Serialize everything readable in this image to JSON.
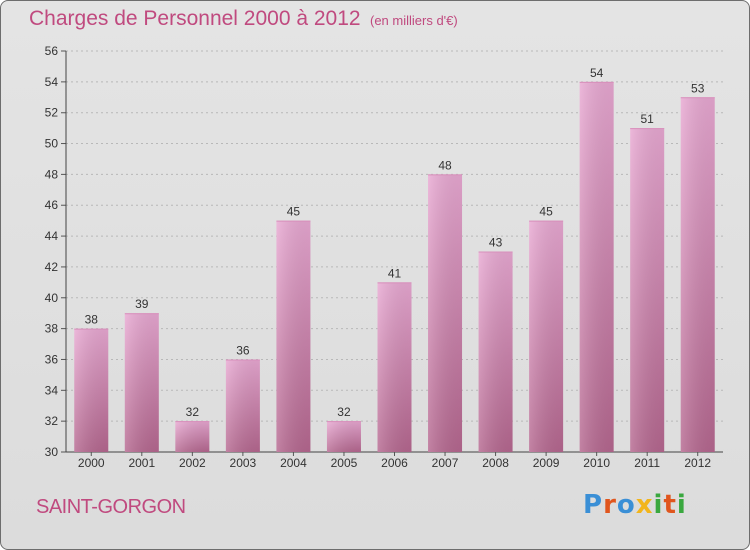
{
  "header": {
    "title": "Charges de Personnel 2000 à 2012",
    "subtitle": "(en milliers d'€)"
  },
  "footer": {
    "town": "SAINT-GORGON",
    "logo_text": "Proxiti"
  },
  "colors": {
    "bar_top": "#e8a8d2",
    "bar_bottom": "#b5678f",
    "title": "#c04a7f",
    "grid": "#b8b8b8"
  },
  "chart_data": {
    "type": "bar",
    "title": "Charges de Personnel 2000 à 2012",
    "categories": [
      "2000",
      "2001",
      "2002",
      "2003",
      "2004",
      "2005",
      "2006",
      "2007",
      "2008",
      "2009",
      "2010",
      "2011",
      "2012"
    ],
    "values": [
      38,
      39,
      32,
      36,
      45,
      32,
      41,
      48,
      43,
      45,
      54,
      51,
      53
    ],
    "ylim": [
      30,
      56
    ],
    "yticks": [
      30,
      32,
      34,
      36,
      38,
      40,
      42,
      44,
      46,
      48,
      50,
      52,
      54,
      56
    ],
    "grid": true,
    "data_labels": true
  }
}
